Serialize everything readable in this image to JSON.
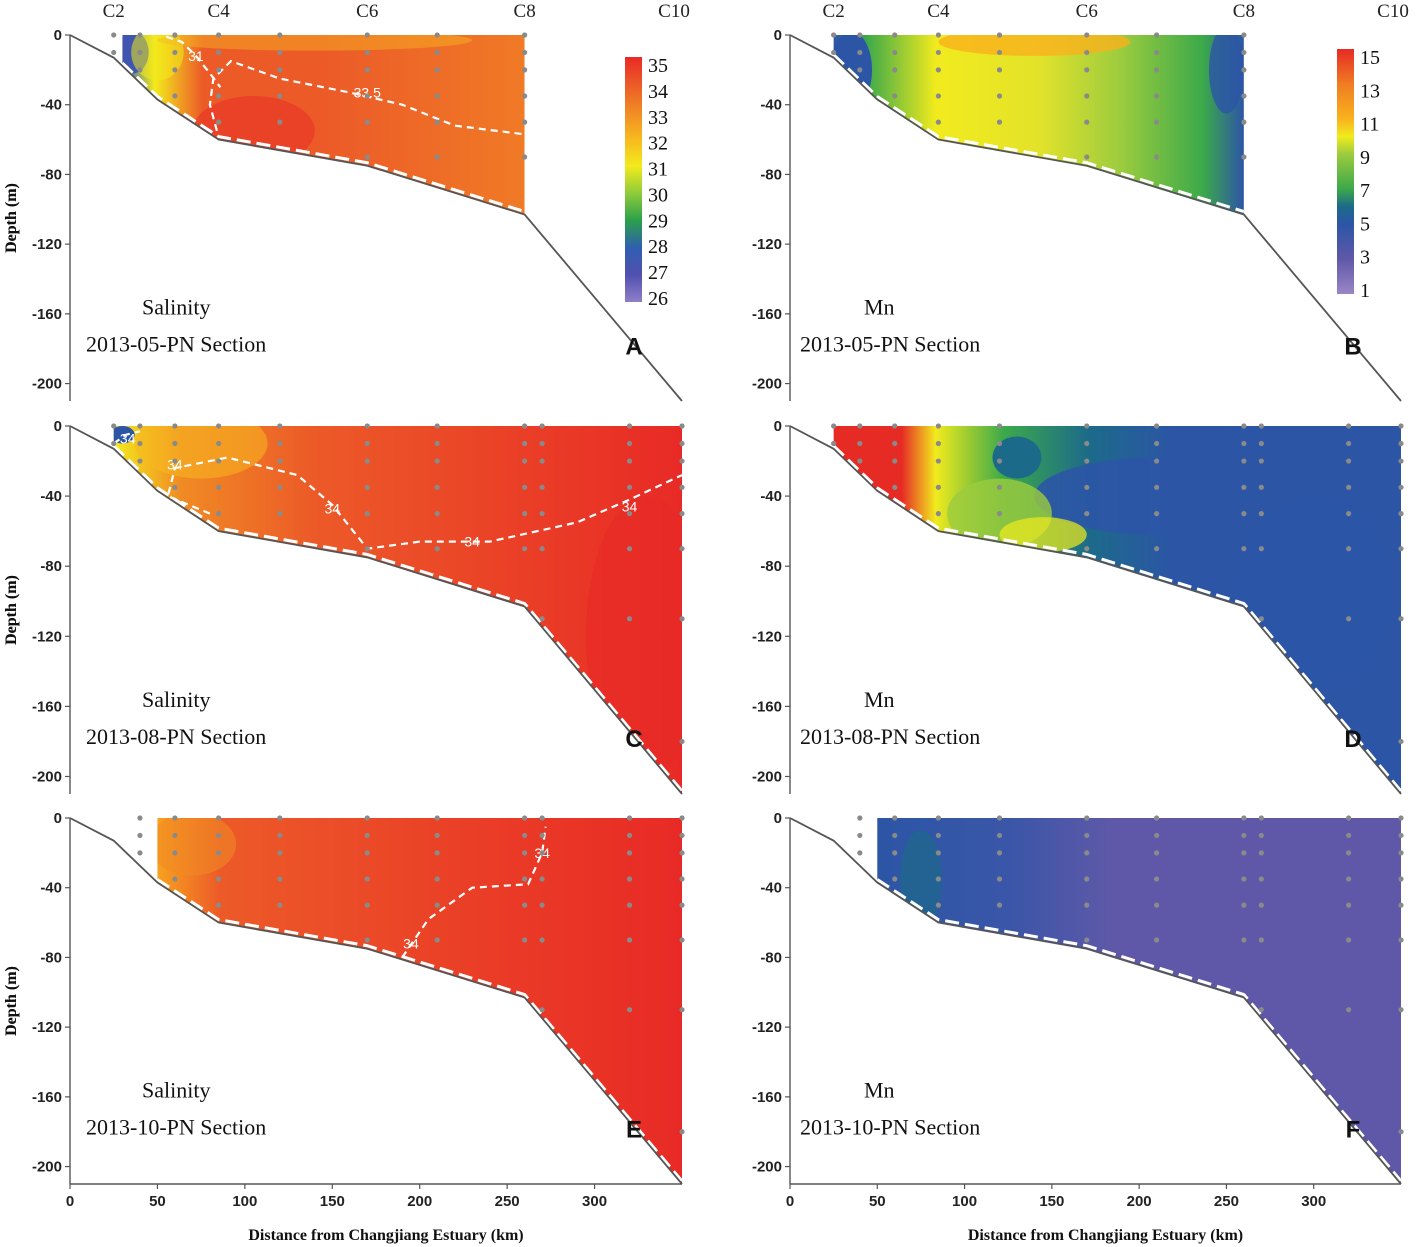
{
  "chart_data": {
    "type": "heatmap",
    "figure": "Salinity and dissolved Mn sections along the PN transect",
    "x_axis": {
      "label": "Distance from Changjiang Estuary (km)",
      "range": [
        0,
        350
      ],
      "ticks": [
        "0",
        "50",
        "100",
        "150",
        "200",
        "250",
        "300"
      ],
      "tick_values": [
        0,
        50,
        100,
        150,
        200,
        250,
        300
      ]
    },
    "y_axis": {
      "label": "Depth (m)",
      "range": [
        -210,
        0
      ],
      "ticks": [
        "0",
        "-40",
        "-80",
        "-120",
        "-160",
        "-200"
      ],
      "tick_values": [
        0,
        -40,
        -80,
        -120,
        -160,
        -200
      ]
    },
    "stations": [
      {
        "label": "C2",
        "km": 25
      },
      {
        "label": "C4",
        "km": 85
      },
      {
        "label": "C6",
        "km": 170
      },
      {
        "label": "C8",
        "km": 260
      },
      {
        "label": "C10",
        "km": 350
      }
    ],
    "bathymetry": {
      "km": [
        0,
        25,
        50,
        85,
        170,
        260,
        350
      ],
      "depth": [
        0,
        -13,
        -37,
        -60,
        -75,
        -103,
        -210
      ]
    },
    "panels": [
      {
        "letter": "A",
        "variable": "Salinity",
        "section": "2013-05-PN Section",
        "show_stations": true,
        "show_xticks": false,
        "data_extent_km": [
          30,
          260
        ],
        "contour_labels": [
          "31",
          "33.5"
        ]
      },
      {
        "letter": "B",
        "variable": "Mn",
        "section": "2013-05-PN Section",
        "show_stations": true,
        "show_xticks": false,
        "data_extent_km": [
          25,
          260
        ],
        "contour_labels": []
      },
      {
        "letter": "C",
        "variable": "Salinity",
        "section": "2013-08-PN Section",
        "show_stations": false,
        "show_xticks": false,
        "data_extent_km": [
          25,
          350
        ],
        "contour_labels": [
          "34",
          "34",
          "34",
          "34",
          "34"
        ]
      },
      {
        "letter": "D",
        "variable": "Mn",
        "section": "2013-08-PN Section",
        "show_stations": false,
        "show_xticks": false,
        "data_extent_km": [
          25,
          350
        ],
        "contour_labels": []
      },
      {
        "letter": "E",
        "variable": "Salinity",
        "section": "2013-10-PN Section",
        "show_stations": false,
        "show_xticks": true,
        "data_extent_km": [
          50,
          350
        ],
        "contour_labels": [
          "34",
          "34"
        ]
      },
      {
        "letter": "F",
        "variable": "Mn",
        "section": "2013-10-PN Section",
        "show_stations": false,
        "show_xticks": true,
        "data_extent_km": [
          50,
          350
        ],
        "contour_labels": []
      }
    ],
    "colorbars": [
      {
        "variable": "Salinity",
        "range": [
          26,
          35
        ],
        "ticks": [
          "35",
          "34",
          "33",
          "32",
          "31",
          "30",
          "29",
          "28",
          "27",
          "26"
        ]
      },
      {
        "variable": "Mn",
        "range": [
          1,
          15
        ],
        "ticks": [
          "15",
          "13",
          "11",
          "9",
          "7",
          "5",
          "3",
          "1"
        ]
      }
    ],
    "colormaps": {
      "salinity": [
        {
          "value": 26,
          "color": "#8f7fc8"
        },
        {
          "value": 27,
          "color": "#5050b0"
        },
        {
          "value": 28,
          "color": "#2f5fb0"
        },
        {
          "value": 29,
          "color": "#2aa04a"
        },
        {
          "value": 30,
          "color": "#8fcc3a"
        },
        {
          "value": 31,
          "color": "#f3ea1c"
        },
        {
          "value": 32,
          "color": "#f7b81f"
        },
        {
          "value": 33,
          "color": "#f08a24"
        },
        {
          "value": 34,
          "color": "#ec5a28"
        },
        {
          "value": 35,
          "color": "#e82a26"
        }
      ],
      "mn": [
        {
          "value": 1,
          "color": "#9a86c6"
        },
        {
          "value": 3,
          "color": "#5f58a8"
        },
        {
          "value": 5,
          "color": "#2c55a6"
        },
        {
          "value": 6,
          "color": "#1c6a8a"
        },
        {
          "value": 7,
          "color": "#3ca94a"
        },
        {
          "value": 9,
          "color": "#9ccc3e"
        },
        {
          "value": 10,
          "color": "#f1eb1d"
        },
        {
          "value": 11,
          "color": "#f9b21d"
        },
        {
          "value": 13,
          "color": "#f07c22"
        },
        {
          "value": 15,
          "color": "#e62b25"
        }
      ]
    }
  }
}
